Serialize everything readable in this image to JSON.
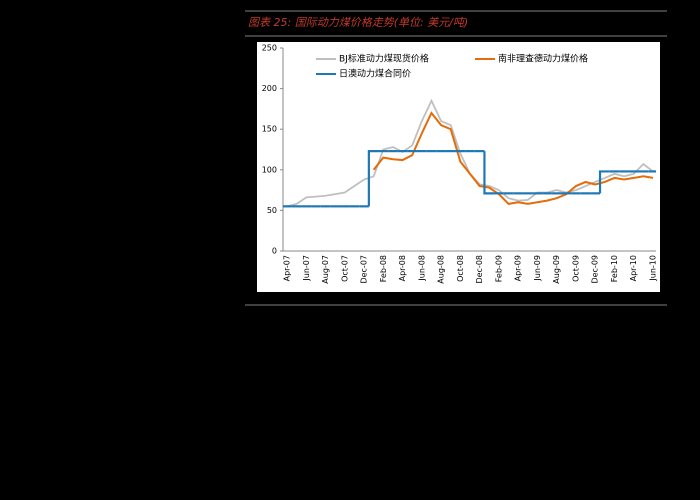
{
  "chart_data": {
    "type": "line",
    "title": "图表 25:  国际动力煤价格走势(单位:  美元/吨)",
    "categories": [
      "Apr-07",
      null,
      "Jun-07",
      null,
      "Aug-07",
      null,
      "Oct-07",
      null,
      "Dec-07",
      null,
      "Feb-08",
      null,
      "Apr-08",
      null,
      "Jun-08",
      null,
      "Aug-08",
      null,
      "Oct-08",
      null,
      "Dec-08",
      null,
      "Feb-09",
      null,
      "Apr-09",
      null,
      "Jun-09",
      null,
      "Aug-09",
      null,
      "Oct-09",
      null,
      "Dec-09",
      null,
      "Feb-10",
      null,
      "Apr-10",
      null,
      "Jun-10"
    ],
    "series": [
      {
        "name": "BJ标准动力煤现货价格",
        "color": "#bfbfbf",
        "values": [
          55,
          58,
          66,
          67,
          68,
          70,
          72,
          80,
          88,
          92,
          125,
          128,
          122,
          130,
          160,
          185,
          160,
          155,
          120,
          95,
          82,
          80,
          75,
          65,
          62,
          63,
          72,
          72,
          75,
          72,
          75,
          80,
          85,
          90,
          95,
          92,
          95,
          107,
          98
        ]
      },
      {
        "name": "南非理查德动力煤价格",
        "color": "#e46c0a",
        "values": [
          null,
          null,
          null,
          null,
          null,
          null,
          null,
          null,
          null,
          100,
          115,
          113,
          112,
          118,
          145,
          170,
          155,
          150,
          110,
          95,
          80,
          78,
          70,
          58,
          60,
          58,
          60,
          62,
          65,
          70,
          80,
          85,
          82,
          85,
          90,
          88,
          90,
          92,
          90
        ]
      },
      {
        "name": "日澳动力煤合同价",
        "color": "#1f77b4",
        "drawstyle": "steps",
        "values": [
          55,
          55,
          55,
          55,
          55,
          55,
          55,
          55,
          55,
          123,
          123,
          123,
          123,
          123,
          123,
          123,
          123,
          123,
          123,
          123,
          123,
          71,
          71,
          71,
          71,
          71,
          71,
          71,
          71,
          71,
          71,
          71,
          71,
          98,
          98,
          98,
          98,
          98,
          98
        ]
      }
    ],
    "ylim": [
      0,
      250
    ],
    "yticks": [
      0,
      50,
      100,
      150,
      200,
      250
    ],
    "grid": false
  }
}
